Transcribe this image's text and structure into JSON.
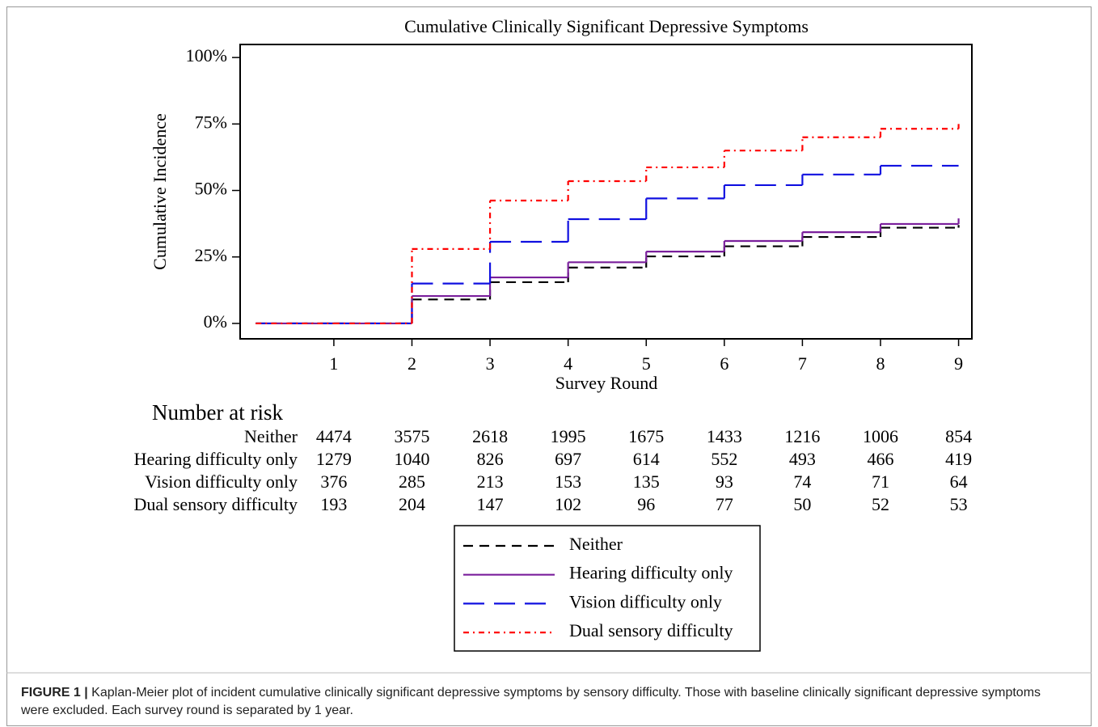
{
  "chart_data": {
    "type": "step",
    "title": "Cumulative Clinically Significant Depressive Symptoms",
    "x_label": "Survey Round",
    "y_label": "Cumulative Incidence",
    "x": [
      0,
      1,
      2,
      3,
      4,
      5,
      6,
      7,
      8,
      9
    ],
    "xlim": [
      -0.2,
      9.17
    ],
    "xticks": [
      1,
      2,
      3,
      4,
      5,
      6,
      7,
      8,
      9
    ],
    "ylim": [
      -5.8,
      104.9
    ],
    "yticks": [
      {
        "value": 0,
        "label": "0%"
      },
      {
        "value": 25,
        "label": "25%"
      },
      {
        "value": 50,
        "label": "50%"
      },
      {
        "value": 75,
        "label": "75%"
      },
      {
        "value": 100,
        "label": "100%"
      }
    ],
    "grid": false,
    "series": [
      {
        "name": "Neither",
        "color": "#000000",
        "dash": "dashed",
        "values": [
          0,
          0,
          9,
          15.5,
          21,
          25.2,
          29,
          32.5,
          36,
          37
        ],
        "at_risk": [
          4474,
          3575,
          2618,
          1995,
          1675,
          1433,
          1216,
          1006,
          854
        ]
      },
      {
        "name": "Hearing difficulty only",
        "color": "#7a1f9c",
        "dash": "solid",
        "values": [
          0,
          0,
          10.3,
          17.3,
          23,
          27,
          31,
          34.3,
          37.4,
          39.5
        ],
        "at_risk": [
          1279,
          1040,
          826,
          697,
          614,
          552,
          493,
          466,
          419
        ]
      },
      {
        "name": "Vision difficulty only",
        "color": "#1010e0",
        "dash": "long-dashed",
        "values": [
          0,
          0,
          15,
          30.7,
          39.2,
          47,
          52,
          56,
          59.3,
          59.3
        ],
        "at_risk": [
          376,
          285,
          213,
          153,
          135,
          93,
          74,
          71,
          64
        ]
      },
      {
        "name": "Dual sensory difficulty",
        "color": "#ff0000",
        "dash": "dash-dot",
        "values": [
          0,
          0,
          28,
          46.2,
          53.5,
          58.7,
          65,
          70,
          73.2,
          75
        ],
        "at_risk": [
          193,
          204,
          147,
          102,
          96,
          77,
          50,
          52,
          53
        ]
      }
    ],
    "risk_table_title": "Number at risk"
  },
  "caption": {
    "label": "FIGURE 1 |",
    "text": "Kaplan-Meier plot of incident cumulative clinically significant depressive symptoms by sensory difficulty. Those with baseline clinically significant depressive symptoms were excluded. Each survey round is separated by 1 year."
  }
}
